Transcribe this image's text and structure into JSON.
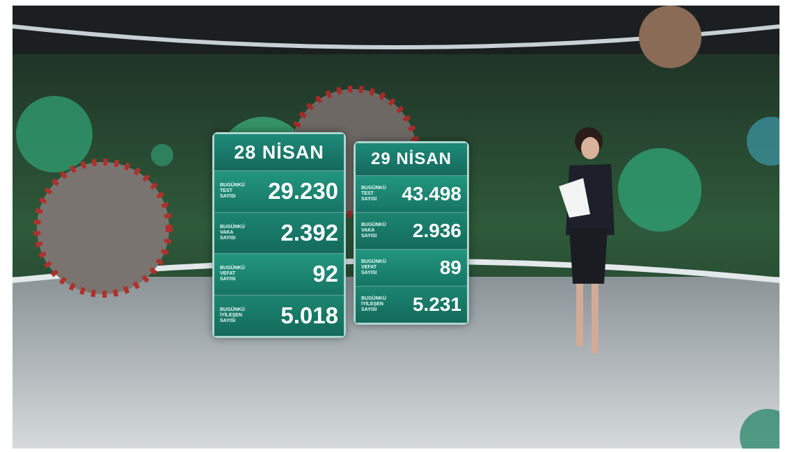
{
  "panels": [
    {
      "date": "28 NİSAN",
      "rows": [
        {
          "label": [
            "BUGÜNKÜ",
            "TEST",
            "SAYISI"
          ],
          "value": "29.230"
        },
        {
          "label": [
            "BUGÜNKÜ",
            "VAKA",
            "SAYISI"
          ],
          "value": "2.392"
        },
        {
          "label": [
            "BUGÜNKÜ",
            "VEFAT",
            "SAYISI"
          ],
          "value": "92"
        },
        {
          "label": [
            "BUGÜNKÜ",
            "İYİLEŞEN",
            "SAYISI"
          ],
          "value": "5.018"
        }
      ]
    },
    {
      "date": "29 NİSAN",
      "rows": [
        {
          "label": [
            "BUGÜNKÜ",
            "TEST",
            "SAYISI"
          ],
          "value": "43.498"
        },
        {
          "label": [
            "BUGÜNKÜ",
            "VAKA",
            "SAYISI"
          ],
          "value": "2.936"
        },
        {
          "label": [
            "BUGÜNKÜ",
            "VEFAT",
            "SAYISI"
          ],
          "value": "89"
        },
        {
          "label": [
            "BUGÜNKÜ",
            "İYİLEŞEN",
            "SAYISI"
          ],
          "value": "5.231"
        }
      ]
    }
  ]
}
